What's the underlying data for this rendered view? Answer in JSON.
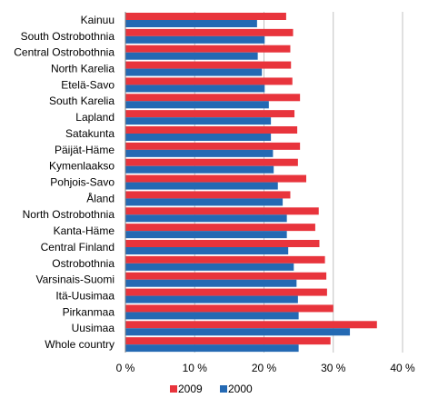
{
  "chart_data": {
    "type": "bar",
    "orientation": "horizontal",
    "categories": [
      "Kainuu",
      "South Ostrobothnia",
      "Central Ostrobothnia",
      "North Karelia",
      "Etelä-Savo",
      "South Karelia",
      "Lapland",
      "Satakunta",
      "Päijät-Häme",
      "Kymenlaakso",
      "Pohjois-Savo",
      "Åland",
      "North Ostrobothnia",
      "Kanta-Häme",
      "Central Finland",
      "Ostrobothnia",
      "Varsinais-Suomi",
      "Itä-Uusimaa",
      "Pirkanmaa",
      "Uusimaa",
      "Whole country"
    ],
    "series": [
      {
        "name": "2009",
        "color": "#e8343c",
        "values": [
          23.2,
          24.2,
          23.8,
          23.9,
          24.1,
          25.2,
          24.4,
          24.8,
          25.2,
          24.9,
          26.1,
          23.8,
          27.9,
          27.4,
          28.0,
          28.8,
          29.0,
          29.1,
          30.0,
          36.3,
          29.6
        ]
      },
      {
        "name": "2000",
        "color": "#2469b3",
        "values": [
          19.0,
          20.1,
          19.1,
          19.7,
          20.1,
          20.7,
          21.0,
          21.0,
          21.3,
          21.4,
          22.0,
          22.7,
          23.3,
          23.3,
          23.5,
          24.3,
          24.7,
          24.9,
          25.0,
          32.4,
          25.0
        ]
      }
    ],
    "xlim": [
      0,
      40
    ],
    "ticks": [
      0,
      10,
      20,
      30,
      40
    ],
    "tick_labels": [
      "0 %",
      "10 %",
      "20 %",
      "30 %",
      "40 %"
    ],
    "grid": true,
    "legend_position": "bottom-center"
  }
}
